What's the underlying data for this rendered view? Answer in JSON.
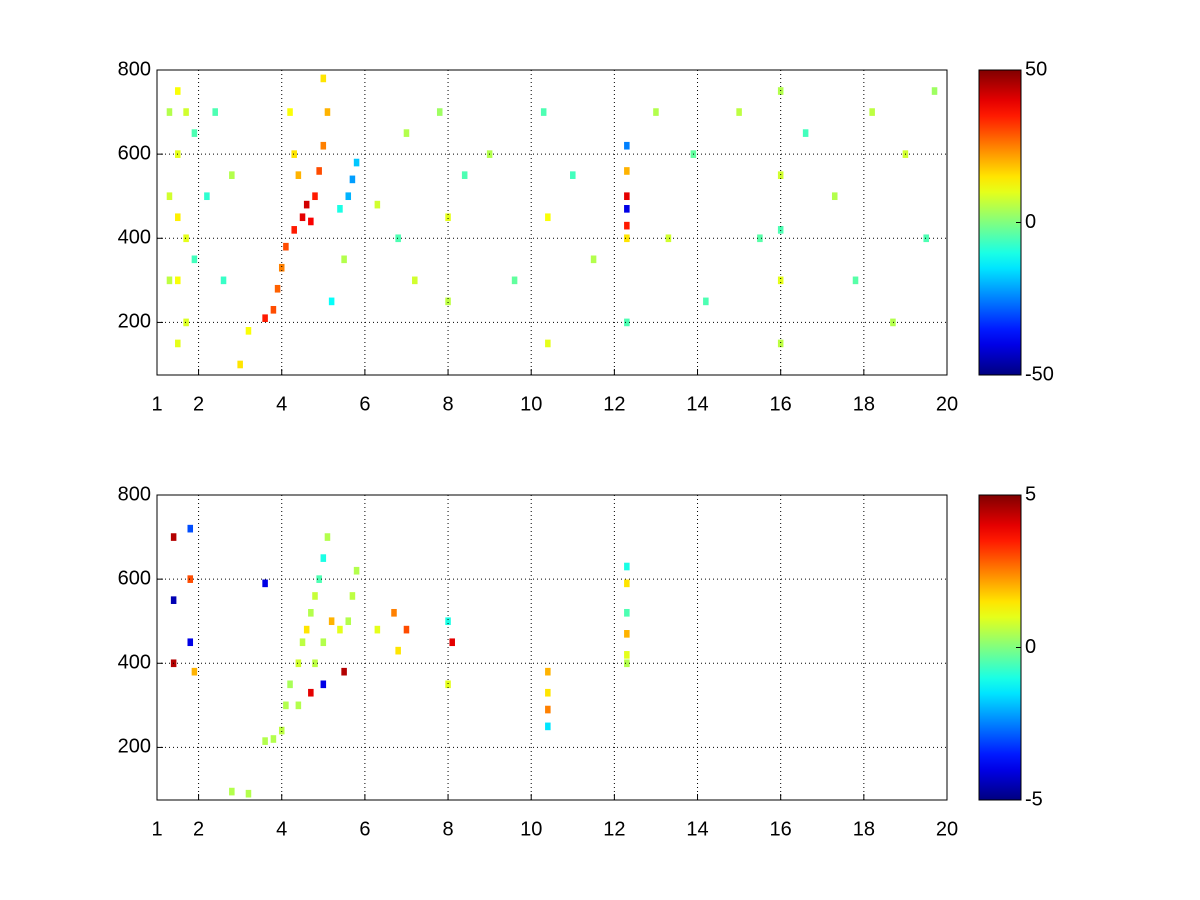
{
  "chart_data": [
    {
      "type": "heatmap",
      "colormap": "jet",
      "grid": true,
      "xlim": [
        1,
        20
      ],
      "xticks": [
        1,
        2,
        4,
        6,
        8,
        10,
        12,
        14,
        16,
        18,
        20
      ],
      "ylim": [
        75,
        800
      ],
      "yticks": [
        200,
        400,
        600,
        800
      ],
      "clim": [
        -50,
        50
      ],
      "cticks": [
        -50,
        0,
        50
      ],
      "x": [
        1.3,
        1.3,
        1.3,
        1.5,
        1.5,
        1.5,
        1.5,
        1.5,
        1.7,
        1.7,
        1.7,
        1.9,
        1.9,
        2.2,
        2.4,
        2.6,
        2.8,
        3.0,
        3.2,
        3.6,
        3.8,
        3.9,
        4.0,
        4.1,
        4.3,
        4.5,
        4.6,
        4.7,
        4.8,
        4.9,
        5.0,
        5.1,
        5.0,
        4.3,
        4.2,
        4.4,
        5.4,
        5.6,
        5.7,
        5.8,
        5.5,
        5.2,
        6.3,
        6.8,
        7.0,
        7.2,
        7.8,
        8.0,
        8.0,
        8.4,
        9.0,
        9.6,
        10.3,
        10.4,
        10.4,
        11.0,
        11.5,
        12.3,
        12.3,
        12.3,
        12.3,
        12.3,
        12.3,
        12.3,
        13.0,
        13.3,
        13.9,
        14.2,
        15.0,
        15.5,
        16.0,
        16.0,
        16.0,
        16.0,
        16.0,
        16.6,
        17.3,
        17.8,
        18.2,
        18.7,
        19.0,
        19.5,
        19.7
      ],
      "y": [
        700,
        500,
        300,
        750,
        600,
        450,
        300,
        150,
        700,
        400,
        200,
        650,
        350,
        500,
        700,
        300,
        550,
        100,
        180,
        210,
        230,
        280,
        330,
        380,
        420,
        450,
        480,
        440,
        500,
        560,
        620,
        700,
        780,
        600,
        700,
        550,
        470,
        500,
        540,
        580,
        350,
        250,
        480,
        400,
        650,
        300,
        700,
        450,
        250,
        550,
        600,
        300,
        700,
        450,
        150,
        550,
        350,
        620,
        560,
        500,
        470,
        430,
        400,
        200,
        700,
        400,
        600,
        250,
        700,
        400,
        750,
        550,
        420,
        300,
        150,
        650,
        500,
        300,
        700,
        200,
        600,
        400,
        750
      ],
      "values": [
        5,
        8,
        6,
        12,
        10,
        14,
        12,
        10,
        8,
        10,
        9,
        -5,
        -6,
        -8,
        -5,
        -7,
        5,
        15,
        12,
        35,
        30,
        28,
        25,
        30,
        35,
        40,
        42,
        38,
        35,
        30,
        25,
        20,
        15,
        15,
        12,
        20,
        -10,
        -20,
        -22,
        -18,
        5,
        -12,
        8,
        -5,
        5,
        8,
        3,
        10,
        6,
        -5,
        5,
        -3,
        -5,
        12,
        10,
        -6,
        5,
        -25,
        20,
        40,
        -40,
        35,
        15,
        -5,
        5,
        8,
        -3,
        -5,
        6,
        -4,
        5,
        8,
        -5,
        10,
        6,
        -6,
        5,
        -4,
        6,
        5,
        8,
        -5,
        3
      ]
    },
    {
      "type": "heatmap",
      "colormap": "jet",
      "grid": true,
      "xlim": [
        1,
        20
      ],
      "xticks": [
        1,
        2,
        4,
        6,
        8,
        10,
        12,
        14,
        16,
        18,
        20
      ],
      "ylim": [
        75,
        800
      ],
      "yticks": [
        200,
        400,
        600,
        800
      ],
      "clim": [
        -5,
        5
      ],
      "cticks": [
        -5,
        0,
        5
      ],
      "x": [
        1.4,
        1.4,
        1.4,
        1.8,
        1.8,
        1.8,
        1.9,
        3.6,
        3.6,
        3.8,
        4.0,
        4.1,
        4.2,
        4.4,
        4.5,
        4.6,
        4.7,
        4.8,
        4.9,
        5.0,
        5.1,
        4.4,
        4.8,
        5.0,
        5.2,
        5.4,
        5.6,
        5.7,
        5.8,
        5.5,
        5.0,
        4.7,
        3.2,
        2.8,
        6.3,
        6.7,
        6.8,
        7.0,
        8.0,
        8.1,
        8.0,
        10.4,
        10.4,
        10.4,
        10.4,
        12.3,
        12.3,
        12.3,
        12.3,
        12.3,
        12.3
      ],
      "y": [
        700,
        550,
        400,
        720,
        600,
        450,
        380,
        590,
        215,
        220,
        240,
        300,
        350,
        400,
        450,
        480,
        520,
        560,
        600,
        650,
        700,
        300,
        400,
        450,
        500,
        480,
        500,
        560,
        620,
        380,
        350,
        330,
        90,
        95,
        480,
        520,
        430,
        480,
        500,
        450,
        350,
        380,
        330,
        290,
        250,
        630,
        590,
        520,
        470,
        420,
        400
      ],
      "values": [
        4.5,
        -4.5,
        4.5,
        -3,
        3,
        -4,
        2,
        -4,
        0.5,
        0.5,
        0.6,
        0.5,
        0.4,
        0.8,
        0.6,
        1.5,
        0.5,
        0.7,
        -0.5,
        -1,
        0.5,
        0.5,
        0.6,
        0.5,
        2,
        1,
        0.5,
        0.6,
        0.5,
        4.5,
        -4,
        4,
        0.5,
        0.5,
        1,
        2.5,
        1.5,
        3,
        -1,
        4,
        1,
        2,
        1.5,
        2.5,
        -1.5,
        -1,
        1.5,
        -0.5,
        2,
        1,
        0.5
      ]
    }
  ]
}
